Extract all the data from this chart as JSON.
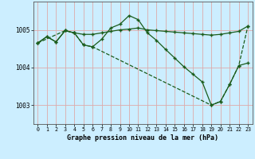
{
  "xlabel": "Graphe pression niveau de la mer (hPa)",
  "background_color": "#cceeff",
  "grid_color": "#ddaaaa",
  "line_color": "#1a5c1a",
  "xlim": [
    -0.5,
    23.5
  ],
  "ylim": [
    1002.5,
    1005.75
  ],
  "yticks": [
    1003,
    1004,
    1005
  ],
  "xticks": [
    0,
    1,
    2,
    3,
    4,
    5,
    6,
    7,
    8,
    9,
    10,
    11,
    12,
    13,
    14,
    15,
    16,
    17,
    18,
    19,
    20,
    21,
    22,
    23
  ],
  "line1_x": [
    0,
    1,
    2,
    3,
    4,
    5,
    6,
    7,
    8,
    9,
    10,
    11,
    12,
    13,
    14,
    15,
    16,
    17,
    18,
    19,
    20,
    21,
    22,
    23
  ],
  "line1_y": [
    1004.65,
    1004.82,
    1004.68,
    1004.98,
    1004.92,
    1004.88,
    1004.88,
    1004.92,
    1004.96,
    1005.0,
    1005.02,
    1005.05,
    1005.0,
    1004.98,
    1004.96,
    1004.94,
    1004.92,
    1004.9,
    1004.88,
    1004.86,
    1004.88,
    1004.92,
    1004.96,
    1005.1
  ],
  "line2_x": [
    0,
    1,
    2,
    3,
    4,
    5,
    6,
    7,
    8,
    9,
    10,
    11,
    12,
    13,
    14,
    15,
    16,
    17,
    18,
    19,
    20,
    21,
    22,
    23
  ],
  "line2_y": [
    1004.65,
    1004.82,
    1004.68,
    1004.98,
    1004.92,
    1004.6,
    1004.55,
    1004.75,
    1005.05,
    1005.15,
    1005.38,
    1005.27,
    1004.92,
    1004.72,
    1004.48,
    1004.25,
    1004.02,
    1003.82,
    1003.62,
    1003.0,
    1003.1,
    1003.55,
    1004.05,
    1004.12
  ],
  "line3_x": [
    0,
    3,
    4,
    5,
    6,
    19,
    20,
    21,
    22,
    23
  ],
  "line3_y": [
    1004.65,
    1004.98,
    1004.92,
    1004.6,
    1004.55,
    1003.0,
    1003.1,
    1003.55,
    1004.05,
    1005.1
  ]
}
